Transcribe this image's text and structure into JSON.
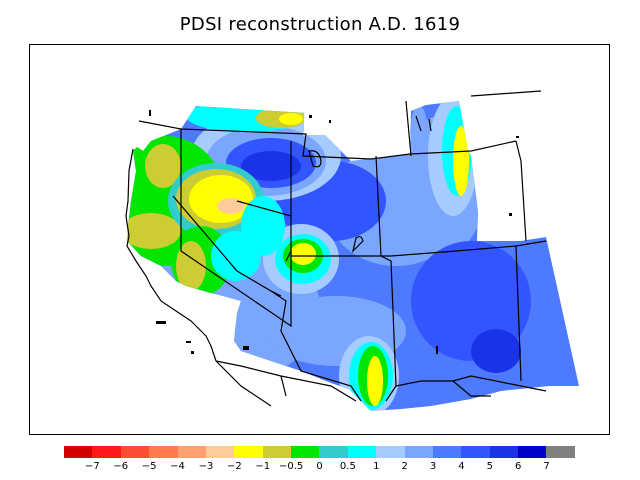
{
  "title": "PDSI reconstruction A.D. 1619",
  "colorbar": {
    "colors": [
      "#d40000",
      "#ff1a1a",
      "#ff4d33",
      "#ff7a4d",
      "#ffa070",
      "#ffcc99",
      "#ffff00",
      "#cccc33",
      "#00e600",
      "#33cccc",
      "#00ffff",
      "#a6ccff",
      "#7ba6ff",
      "#4d7aff",
      "#3355ff",
      "#1a33e6",
      "#0000cc",
      "#808080"
    ],
    "tick_labels": [
      "−7",
      "−6",
      "−5",
      "−4",
      "−3",
      "−2",
      "−1",
      "−0.5",
      "0",
      "0.5",
      "1",
      "2",
      "3",
      "4",
      "5",
      "6",
      "7"
    ]
  }
}
